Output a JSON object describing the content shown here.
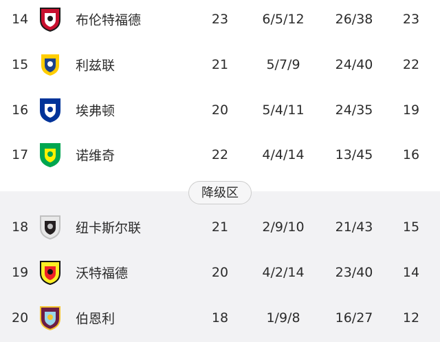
{
  "rows_top": [
    {
      "rank": "14",
      "team": "布伦特福德",
      "played": "23",
      "wdl": "6/5/12",
      "goals": "26/38",
      "points": "23",
      "logo": "brentford-crest-icon",
      "colors": [
        "#c8102e",
        "#ffffff",
        "#1a1a1a"
      ]
    },
    {
      "rank": "15",
      "team": "利兹联",
      "played": "21",
      "wdl": "5/7/9",
      "goals": "24/40",
      "points": "22",
      "logo": "leeds-crest-icon",
      "colors": [
        "#ffcd00",
        "#1d428a",
        "#ffffff"
      ]
    },
    {
      "rank": "16",
      "team": "埃弗顿",
      "played": "20",
      "wdl": "5/4/11",
      "goals": "24/35",
      "points": "19",
      "logo": "everton-crest-icon",
      "colors": [
        "#003399",
        "#ffffff",
        "#003399"
      ]
    },
    {
      "rank": "17",
      "team": "诺维奇",
      "played": "22",
      "wdl": "4/4/14",
      "goals": "13/45",
      "points": "16",
      "logo": "norwich-crest-icon",
      "colors": [
        "#00a650",
        "#fff200",
        "#00a650"
      ]
    }
  ],
  "relegation_label": "降级区",
  "rows_bottom": [
    {
      "rank": "18",
      "team": "纽卡斯尔联",
      "played": "21",
      "wdl": "2/9/10",
      "goals": "21/43",
      "points": "15",
      "logo": "newcastle-crest-icon",
      "colors": [
        "#e8e8e8",
        "#241f20",
        "#c0c0c0"
      ]
    },
    {
      "rank": "19",
      "team": "沃特福德",
      "played": "20",
      "wdl": "4/2/14",
      "goals": "23/40",
      "points": "14",
      "logo": "watford-crest-icon",
      "colors": [
        "#fbee23",
        "#ed2127",
        "#111111"
      ]
    },
    {
      "rank": "20",
      "team": "伯恩利",
      "played": "18",
      "wdl": "1/9/8",
      "goals": "16/27",
      "points": "12",
      "logo": "burnley-crest-icon",
      "colors": [
        "#6c1d45",
        "#99d6ea",
        "#f4c430"
      ]
    }
  ]
}
